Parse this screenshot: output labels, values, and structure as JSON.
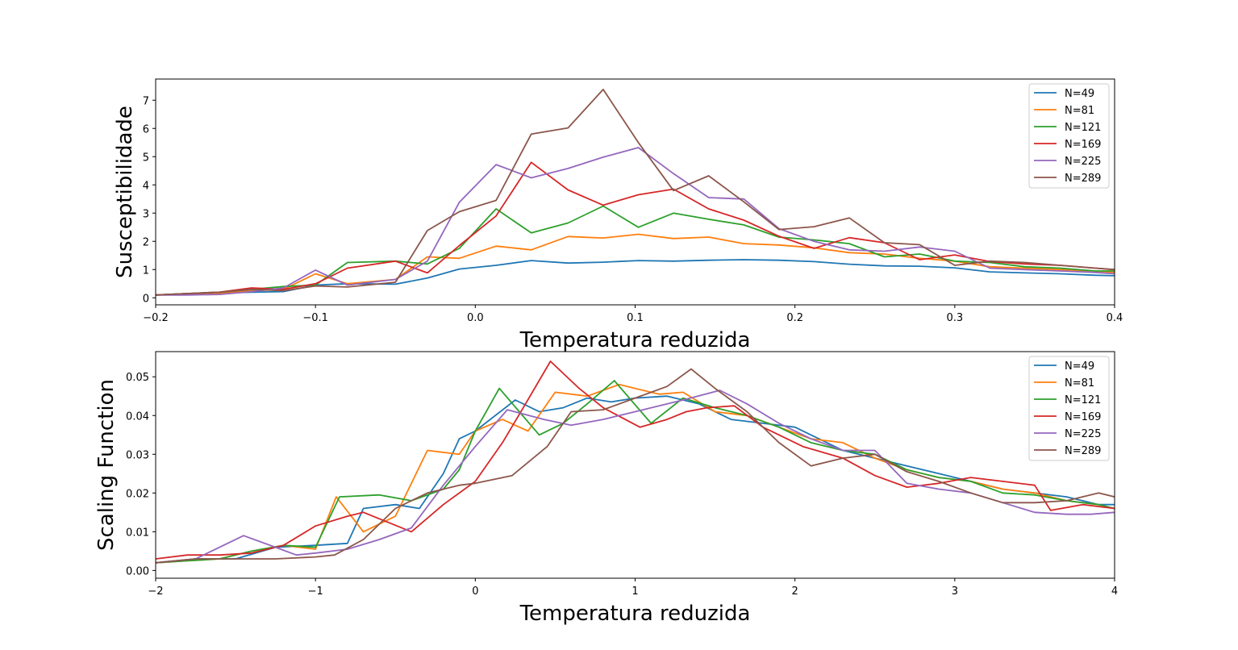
{
  "chart_data": [
    {
      "type": "line",
      "xlabel": "Temperatura reduzida",
      "ylabel": "Susceptibilidade",
      "xlim": [
        -0.2,
        0.4
      ],
      "ylim": [
        -0.25,
        7.75
      ],
      "xticks": [
        -0.2,
        -0.1,
        0.0,
        0.1,
        0.2,
        0.3,
        0.4
      ],
      "xtick_labels": [
        "−0.2",
        "−0.1",
        "0.0",
        "0.1",
        "0.2",
        "0.3",
        "0.4"
      ],
      "yticks": [
        0,
        1,
        2,
        3,
        4,
        5,
        6,
        7
      ],
      "ytick_labels": [
        "0",
        "1",
        "2",
        "3",
        "4",
        "5",
        "6",
        "7"
      ],
      "grid": false,
      "legend": "top-right",
      "series": [
        {
          "name": "N=49",
          "color": "#1f77b4",
          "x": [
            -0.2,
            -0.18,
            -0.16,
            -0.14,
            -0.12,
            -0.1,
            -0.08,
            -0.05,
            -0.03,
            -0.01,
            0.013,
            0.035,
            0.058,
            0.08,
            0.102,
            0.124,
            0.146,
            0.168,
            0.19,
            0.212,
            0.234,
            0.256,
            0.278,
            0.3,
            0.322,
            0.344,
            0.366,
            0.388,
            0.4
          ],
          "y": [
            0.1,
            0.15,
            0.17,
            0.2,
            0.22,
            0.45,
            0.5,
            0.48,
            0.7,
            1.02,
            1.15,
            1.32,
            1.23,
            1.26,
            1.32,
            1.3,
            1.33,
            1.35,
            1.33,
            1.28,
            1.19,
            1.13,
            1.12,
            1.06,
            0.92,
            0.88,
            0.85,
            0.8,
            0.78
          ]
        },
        {
          "name": "N=81",
          "color": "#ff7f0e",
          "x": [
            -0.2,
            -0.18,
            -0.16,
            -0.14,
            -0.12,
            -0.1,
            -0.08,
            -0.05,
            -0.03,
            -0.01,
            0.013,
            0.035,
            0.058,
            0.08,
            0.102,
            0.124,
            0.146,
            0.168,
            0.19,
            0.212,
            0.234,
            0.256,
            0.278,
            0.3,
            0.322,
            0.344,
            0.366,
            0.388,
            0.4
          ],
          "y": [
            0.1,
            0.13,
            0.16,
            0.25,
            0.3,
            0.85,
            0.5,
            0.65,
            1.45,
            1.4,
            1.83,
            1.7,
            2.17,
            2.12,
            2.25,
            2.1,
            2.15,
            1.92,
            1.87,
            1.77,
            1.6,
            1.55,
            1.4,
            1.3,
            1.1,
            1.05,
            1.0,
            0.95,
            0.9
          ]
        },
        {
          "name": "N=121",
          "color": "#2ca02c",
          "x": [
            -0.2,
            -0.18,
            -0.16,
            -0.14,
            -0.12,
            -0.1,
            -0.08,
            -0.05,
            -0.03,
            -0.01,
            0.013,
            0.035,
            0.058,
            0.08,
            0.102,
            0.124,
            0.146,
            0.168,
            0.19,
            0.212,
            0.234,
            0.256,
            0.278,
            0.3,
            0.322,
            0.344,
            0.366,
            0.388,
            0.4
          ],
          "y": [
            0.1,
            0.15,
            0.2,
            0.3,
            0.4,
            0.45,
            1.25,
            1.3,
            1.2,
            1.75,
            3.15,
            2.3,
            2.65,
            3.25,
            2.5,
            3.0,
            2.78,
            2.58,
            2.15,
            2.05,
            1.92,
            1.45,
            1.55,
            1.3,
            1.25,
            1.1,
            1.05,
            0.95,
            0.95
          ]
        },
        {
          "name": "N=169",
          "color": "#d62728",
          "x": [
            -0.2,
            -0.18,
            -0.16,
            -0.14,
            -0.12,
            -0.1,
            -0.08,
            -0.05,
            -0.03,
            -0.01,
            0.013,
            0.035,
            0.058,
            0.08,
            0.102,
            0.124,
            0.146,
            0.168,
            0.19,
            0.212,
            0.234,
            0.256,
            0.278,
            0.3,
            0.322,
            0.344,
            0.366,
            0.388,
            0.4
          ],
          "y": [
            0.1,
            0.15,
            0.2,
            0.35,
            0.3,
            0.5,
            1.05,
            1.3,
            0.88,
            1.85,
            2.9,
            4.8,
            3.82,
            3.28,
            3.65,
            3.85,
            3.15,
            2.75,
            2.18,
            1.75,
            2.13,
            1.95,
            1.35,
            1.52,
            1.28,
            1.2,
            1.15,
            1.05,
            1.0
          ]
        },
        {
          "name": "N=225",
          "color": "#9467bd",
          "x": [
            -0.2,
            -0.18,
            -0.16,
            -0.14,
            -0.12,
            -0.1,
            -0.08,
            -0.05,
            -0.03,
            -0.01,
            0.013,
            0.035,
            0.058,
            0.08,
            0.102,
            0.124,
            0.146,
            0.168,
            0.19,
            0.212,
            0.234,
            0.256,
            0.278,
            0.3,
            0.322,
            0.344,
            0.366,
            0.388,
            0.4
          ],
          "y": [
            0.1,
            0.1,
            0.12,
            0.22,
            0.35,
            0.98,
            0.45,
            0.65,
            1.3,
            3.38,
            4.72,
            4.25,
            4.58,
            4.98,
            5.32,
            4.4,
            3.55,
            3.5,
            2.45,
            2.0,
            1.7,
            1.65,
            1.8,
            1.65,
            1.05,
            1.0,
            0.95,
            0.9,
            0.85
          ]
        },
        {
          "name": "N=289",
          "color": "#8c564b",
          "x": [
            -0.2,
            -0.18,
            -0.16,
            -0.14,
            -0.12,
            -0.1,
            -0.08,
            -0.05,
            -0.03,
            -0.01,
            0.013,
            0.035,
            0.058,
            0.08,
            0.102,
            0.124,
            0.146,
            0.168,
            0.19,
            0.212,
            0.234,
            0.256,
            0.278,
            0.3,
            0.322,
            0.344,
            0.366,
            0.388,
            0.4
          ],
          "y": [
            0.1,
            0.15,
            0.2,
            0.3,
            0.25,
            0.42,
            0.38,
            0.55,
            2.38,
            3.05,
            3.45,
            5.8,
            6.02,
            7.38,
            5.5,
            3.8,
            4.32,
            3.4,
            2.42,
            2.52,
            2.83,
            1.95,
            1.88,
            1.15,
            1.3,
            1.25,
            1.15,
            1.05,
            1.0
          ]
        }
      ]
    },
    {
      "type": "line",
      "xlabel": "Temperatura reduzida",
      "ylabel": "Scaling Function",
      "xlim": [
        -2,
        4
      ],
      "ylim": [
        -0.002,
        0.0565
      ],
      "xticks": [
        -2,
        -1,
        0,
        1,
        2,
        3,
        4
      ],
      "xtick_labels": [
        "−2",
        "−1",
        "0",
        "1",
        "2",
        "3",
        "4"
      ],
      "yticks": [
        0.0,
        0.01,
        0.02,
        0.03,
        0.04,
        0.05
      ],
      "ytick_labels": [
        "0.00",
        "0.01",
        "0.02",
        "0.03",
        "0.04",
        "0.05"
      ],
      "grid": false,
      "legend": "top-right",
      "series": [
        {
          "name": "N=49",
          "color": "#1f77b4",
          "x": [
            -2.0,
            -1.75,
            -1.5,
            -1.25,
            -1.0,
            -0.8,
            -0.7,
            -0.5,
            -0.35,
            -0.2,
            -0.1,
            0.0,
            0.25,
            0.4,
            0.55,
            0.7,
            0.85,
            1.0,
            1.2,
            1.4,
            1.6,
            1.8,
            2.0,
            2.1,
            2.3,
            2.5,
            2.7,
            2.9,
            3.1,
            3.3,
            3.5,
            3.7,
            3.9,
            4.0
          ],
          "y": [
            0.002,
            0.003,
            0.003,
            0.006,
            0.0065,
            0.007,
            0.016,
            0.017,
            0.016,
            0.025,
            0.034,
            0.036,
            0.044,
            0.041,
            0.042,
            0.0445,
            0.0435,
            0.0445,
            0.045,
            0.043,
            0.039,
            0.038,
            0.037,
            0.035,
            0.031,
            0.029,
            0.027,
            0.025,
            0.023,
            0.021,
            0.02,
            0.019,
            0.017,
            0.017
          ]
        },
        {
          "name": "N=81",
          "color": "#ff7f0e",
          "x": [
            -2.0,
            -1.8,
            -1.6,
            -1.4,
            -1.2,
            -1.0,
            -0.87,
            -0.7,
            -0.5,
            -0.3,
            -0.1,
            0.0,
            0.17,
            0.33,
            0.5,
            0.7,
            0.9,
            1.0,
            1.15,
            1.3,
            1.5,
            1.7,
            1.9,
            2.1,
            2.3,
            2.5,
            2.7,
            2.9,
            3.1,
            3.3,
            3.5,
            3.7,
            3.9,
            4.0
          ],
          "y": [
            0.002,
            0.0025,
            0.003,
            0.005,
            0.0065,
            0.0055,
            0.019,
            0.01,
            0.014,
            0.031,
            0.03,
            0.036,
            0.039,
            0.036,
            0.046,
            0.045,
            0.048,
            0.047,
            0.0455,
            0.046,
            0.041,
            0.04,
            0.037,
            0.034,
            0.033,
            0.029,
            0.026,
            0.024,
            0.023,
            0.021,
            0.02,
            0.018,
            0.017,
            0.016
          ]
        },
        {
          "name": "N=121",
          "color": "#2ca02c",
          "x": [
            -2.0,
            -1.8,
            -1.6,
            -1.4,
            -1.2,
            -1.0,
            -0.85,
            -0.6,
            -0.4,
            -0.2,
            -0.1,
            0.0,
            0.15,
            0.4,
            0.55,
            0.7,
            0.87,
            1.1,
            1.3,
            1.5,
            1.7,
            1.9,
            2.1,
            2.3,
            2.5,
            2.7,
            2.9,
            3.1,
            3.3,
            3.5,
            3.7,
            3.9,
            4.0
          ],
          "y": [
            0.002,
            0.0025,
            0.003,
            0.005,
            0.0065,
            0.006,
            0.019,
            0.0195,
            0.018,
            0.021,
            0.026,
            0.036,
            0.047,
            0.035,
            0.038,
            0.043,
            0.049,
            0.038,
            0.0445,
            0.042,
            0.04,
            0.037,
            0.033,
            0.031,
            0.03,
            0.026,
            0.024,
            0.023,
            0.02,
            0.0195,
            0.018,
            0.017,
            0.016
          ]
        },
        {
          "name": "N=169",
          "color": "#d62728",
          "x": [
            -2.0,
            -1.8,
            -1.6,
            -1.4,
            -1.2,
            -1.0,
            -0.8,
            -0.7,
            -0.4,
            -0.2,
            0.0,
            0.17,
            0.3,
            0.47,
            0.65,
            0.8,
            1.03,
            1.2,
            1.32,
            1.45,
            1.62,
            1.8,
            2.05,
            2.3,
            2.5,
            2.7,
            2.9,
            3.1,
            3.3,
            3.5,
            3.6,
            3.8,
            4.0
          ],
          "y": [
            0.003,
            0.004,
            0.004,
            0.0045,
            0.0065,
            0.0115,
            0.014,
            0.015,
            0.01,
            0.017,
            0.023,
            0.033,
            0.042,
            0.054,
            0.047,
            0.042,
            0.037,
            0.039,
            0.041,
            0.042,
            0.0425,
            0.037,
            0.032,
            0.029,
            0.0245,
            0.0215,
            0.0225,
            0.024,
            0.023,
            0.022,
            0.0155,
            0.017,
            0.016
          ]
        },
        {
          "name": "N=225",
          "color": "#9467bd",
          "x": [
            -2.0,
            -1.75,
            -1.45,
            -1.25,
            -1.12,
            -1.0,
            -0.8,
            -0.6,
            -0.4,
            -0.2,
            0.0,
            0.2,
            0.43,
            0.6,
            0.8,
            1.0,
            1.3,
            1.53,
            1.7,
            1.9,
            2.1,
            2.3,
            2.5,
            2.7,
            2.9,
            3.1,
            3.3,
            3.5,
            3.7,
            3.85,
            4.0
          ],
          "y": [
            0.002,
            0.003,
            0.009,
            0.006,
            0.004,
            0.0045,
            0.0055,
            0.008,
            0.011,
            0.022,
            0.032,
            0.0415,
            0.039,
            0.0375,
            0.039,
            0.041,
            0.044,
            0.0465,
            0.043,
            0.038,
            0.034,
            0.031,
            0.031,
            0.0225,
            0.021,
            0.02,
            0.0175,
            0.015,
            0.0145,
            0.0145,
            0.015
          ]
        },
        {
          "name": "N=289",
          "color": "#8c564b",
          "x": [
            -2.0,
            -1.75,
            -1.5,
            -1.25,
            -1.0,
            -0.88,
            -0.7,
            -0.5,
            -0.3,
            -0.1,
            0.0,
            0.23,
            0.45,
            0.6,
            0.8,
            1.0,
            1.2,
            1.35,
            1.5,
            1.7,
            1.9,
            2.1,
            2.3,
            2.5,
            2.7,
            2.9,
            3.1,
            3.3,
            3.5,
            3.7,
            3.9,
            4.0
          ],
          "y": [
            0.002,
            0.003,
            0.003,
            0.003,
            0.0035,
            0.004,
            0.008,
            0.016,
            0.02,
            0.022,
            0.0225,
            0.0245,
            0.032,
            0.041,
            0.0415,
            0.0445,
            0.0475,
            0.052,
            0.047,
            0.041,
            0.033,
            0.027,
            0.029,
            0.03,
            0.0255,
            0.023,
            0.02,
            0.0175,
            0.0175,
            0.018,
            0.02,
            0.019
          ]
        }
      ]
    }
  ]
}
